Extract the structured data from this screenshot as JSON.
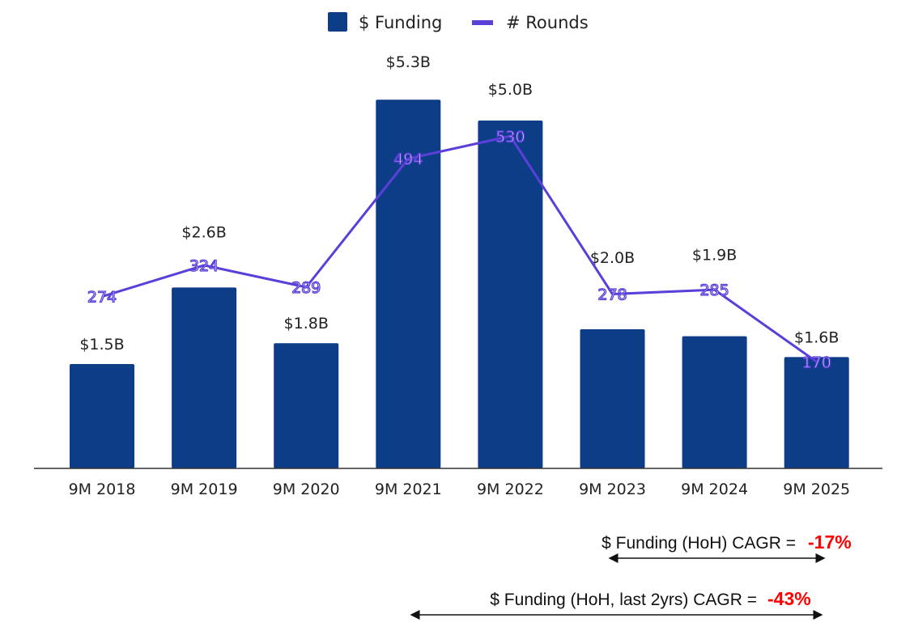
{
  "chart_data": {
    "type": "bar",
    "title": "",
    "categories": [
      "9M 2018",
      "9M 2019",
      "9M 2020",
      "9M 2021",
      "9M 2022",
      "9M 2023",
      "9M 2024",
      "9M 2025"
    ],
    "series": [
      {
        "name": "$ Funding",
        "type": "bar",
        "unit": "B USD",
        "values": [
          1.5,
          2.6,
          1.8,
          5.3,
          5.0,
          2.0,
          1.9,
          1.6
        ],
        "labels": [
          "$1.5B",
          "$2.6B",
          "$1.8B",
          "$5.3B",
          "$5.0B",
          "$2.0B",
          "$1.9B",
          "$1.6B"
        ],
        "color": "#0d3d87"
      },
      {
        "name": "# Rounds",
        "type": "line",
        "values": [
          274,
          324,
          289,
          494,
          530,
          278,
          285,
          170
        ],
        "color": "#5b3fd9"
      }
    ],
    "legend_position": "top-center",
    "grid": false,
    "annotations": [
      {
        "text": "$ Funding (HoH) CAGR =",
        "value": "-17%",
        "span": [
          "9M 2024",
          "9M 2025"
        ]
      },
      {
        "text": "$ Funding (HoH, last 2yrs) CAGR =",
        "value": "-43%",
        "span": [
          "9M 2021",
          "9M 2025"
        ]
      }
    ],
    "annotation_color": "#ff0000"
  }
}
